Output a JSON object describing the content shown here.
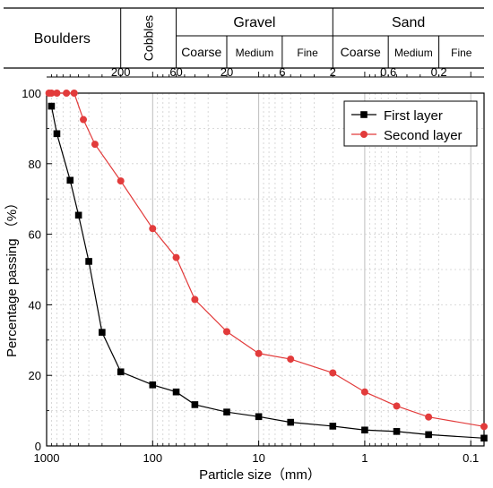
{
  "chart_data": {
    "type": "line",
    "xlabel": "Particle size（mm）",
    "ylabel": "Percentage passing （%）",
    "x_scale": "log",
    "x_reversed": true,
    "xlim": [
      1000,
      0.075
    ],
    "ylim": [
      0,
      100
    ],
    "x_ticks": [
      1000,
      100,
      10,
      1,
      0.1
    ],
    "x_tick_labels": [
      "1000",
      "100",
      "10",
      "1",
      "0.1"
    ],
    "y_ticks": [
      0,
      20,
      40,
      60,
      80,
      100
    ],
    "y_tick_labels": [
      "0",
      "20",
      "40",
      "60",
      "80",
      "100"
    ],
    "grid": true,
    "legend_position": "top-right",
    "series": [
      {
        "name": "First layer",
        "color": "#000000",
        "marker": "square",
        "x": [
          900,
          800,
          600,
          500,
          400,
          300,
          200,
          100,
          60,
          40,
          20,
          10,
          5,
          2,
          1,
          0.5,
          0.25,
          0.075
        ],
        "y": [
          96.3,
          88.5,
          75.3,
          65.4,
          52.3,
          32.2,
          21.0,
          17.3,
          15.3,
          11.7,
          9.6,
          8.3,
          6.7,
          5.6,
          4.5,
          4.1,
          3.2,
          2.2
        ]
      },
      {
        "name": "Second layer",
        "color": "#e23b3b",
        "marker": "circle",
        "x": [
          950,
          900,
          800,
          650,
          550,
          450,
          350,
          200,
          100,
          60,
          40,
          20,
          10,
          5,
          2,
          1,
          0.5,
          0.25,
          0.075
        ],
        "y": [
          100,
          100,
          100,
          100,
          100,
          92.5,
          85.5,
          75.1,
          61.6,
          53.4,
          41.5,
          32.4,
          26.2,
          24.6,
          20.7,
          15.3,
          11.3,
          8.2,
          5.5
        ]
      }
    ],
    "classification": {
      "groups": [
        {
          "label": "Boulders"
        },
        {
          "label": "Cobbles"
        },
        {
          "label": "Gravel",
          "subs": [
            "Coarse",
            "Medium",
            "Fine"
          ]
        },
        {
          "label": "Sand",
          "subs": [
            "Coarse",
            "Medium",
            "Fine"
          ]
        }
      ],
      "boundary_labels": [
        {
          "label": "200",
          "value": 200
        },
        {
          "label": "60",
          "value": 60
        },
        {
          "label": "20",
          "value": 20
        },
        {
          "label": "6",
          "value": 6
        },
        {
          "label": "2",
          "value": 2
        },
        {
          "label": "0.6",
          "value": 0.6
        },
        {
          "label": "0.2",
          "value": 0.2
        }
      ],
      "boundary_values": [
        200,
        60,
        20,
        6,
        2,
        0.6,
        0.2,
        0.075
      ]
    }
  }
}
